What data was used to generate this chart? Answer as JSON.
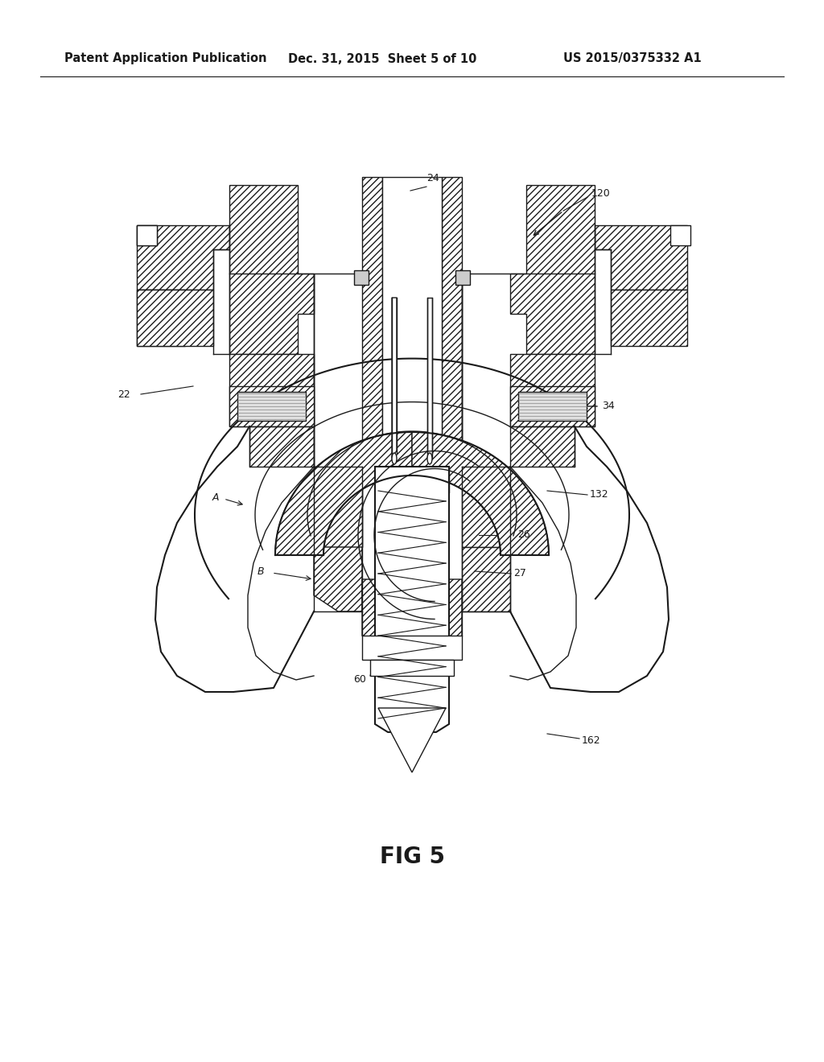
{
  "title_left": "Patent Application Publication",
  "title_center": "Dec. 31, 2015  Sheet 5 of 10",
  "title_right": "US 2015/0375332 A1",
  "fig_label": "FIG 5",
  "bg_color": "#ffffff",
  "line_color": "#1a1a1a",
  "header_fontsize": 10.5,
  "fig_label_fontsize": 20,
  "label_fontsize": 9
}
